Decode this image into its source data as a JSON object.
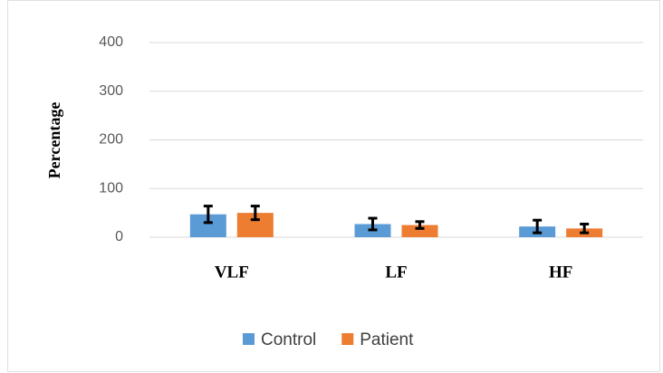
{
  "chart_data": {
    "type": "bar",
    "y_label": "Percentage",
    "categories": [
      "VLF",
      "LF",
      "HF"
    ],
    "series": [
      {
        "name": "Control",
        "color": "#5b9bd5",
        "values": [
          47,
          27,
          22
        ],
        "errors": [
          17,
          12,
          13
        ]
      },
      {
        "name": "Patient",
        "color": "#ed7d31",
        "values": [
          50,
          25,
          18
        ],
        "errors": [
          14,
          7,
          9
        ]
      }
    ],
    "ylim": [
      0,
      400
    ],
    "yticks": [
      0,
      100,
      200,
      300,
      400
    ],
    "grid": true,
    "legend": "bottom"
  }
}
